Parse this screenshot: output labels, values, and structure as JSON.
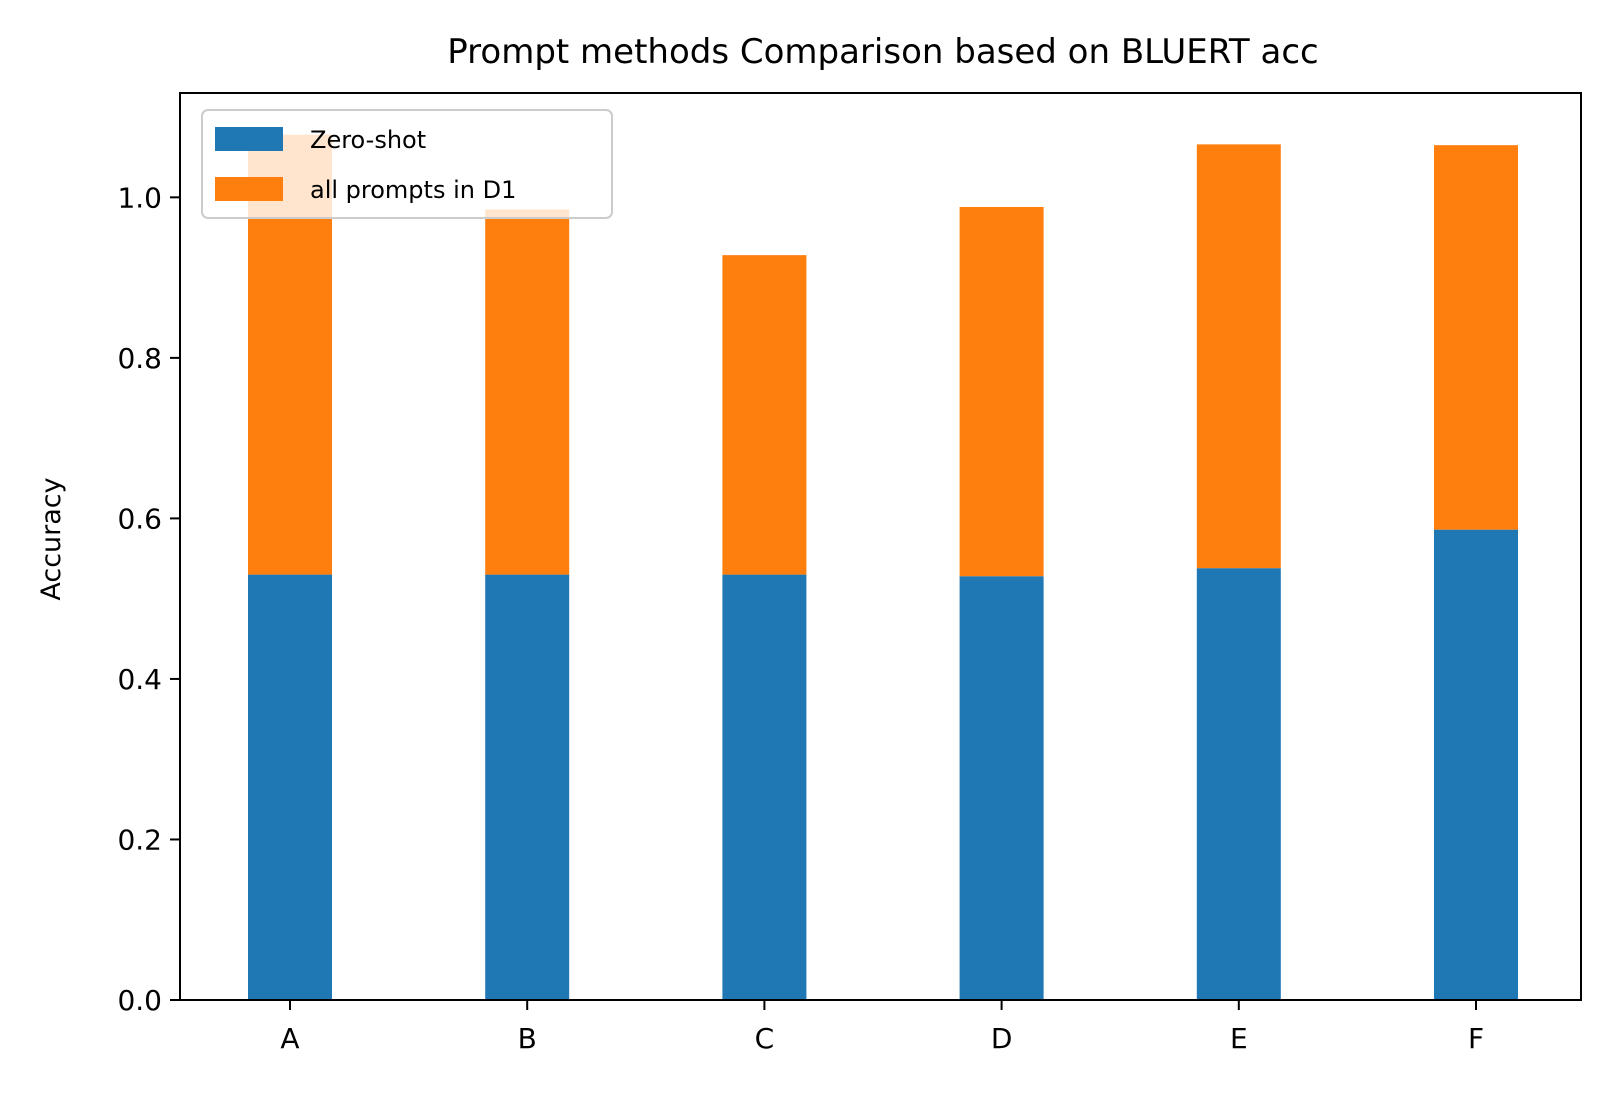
{
  "chart_data": {
    "type": "bar",
    "stacked": true,
    "title": "Prompt methods Comparison based on BLUERT acc",
    "xlabel": "",
    "ylabel": "Accuracy",
    "categories": [
      "A",
      "B",
      "C",
      "D",
      "E",
      "F"
    ],
    "series": [
      {
        "name": "Zero-shot",
        "color": "#1f77b4",
        "values": [
          0.53,
          0.53,
          0.53,
          0.528,
          0.538,
          0.586
        ]
      },
      {
        "name": "all prompts in D1",
        "color": "#ff7f0e",
        "values": [
          0.548,
          0.455,
          0.398,
          0.46,
          0.528,
          0.479
        ]
      }
    ],
    "ylim": [
      0,
      1.13
    ],
    "yticks": [
      0.0,
      0.2,
      0.4,
      0.6,
      0.8,
      1.0
    ],
    "ytick_labels": [
      "0.0",
      "0.2",
      "0.4",
      "0.6",
      "0.8",
      "1.0"
    ],
    "grid": false,
    "legend_position": "top-left"
  }
}
